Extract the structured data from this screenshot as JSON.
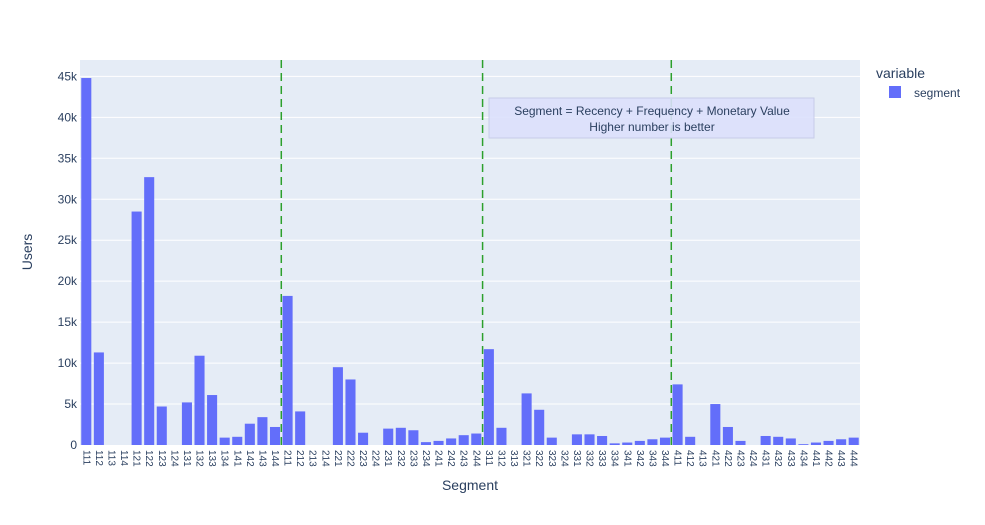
{
  "chart_data": {
    "type": "bar",
    "xlabel": "Segment",
    "ylabel": "Users",
    "ylim": [
      0,
      47000
    ],
    "yticks": [
      0,
      5000,
      10000,
      15000,
      20000,
      25000,
      30000,
      35000,
      40000,
      45000
    ],
    "ytick_labels": [
      "0",
      "5k",
      "10k",
      "15k",
      "20k",
      "25k",
      "30k",
      "35k",
      "40k",
      "45k"
    ],
    "grid": true,
    "legend": {
      "title": "variable",
      "placement": "top-right"
    },
    "series": [
      {
        "name": "segment",
        "color": "#636efa",
        "values": [
          44800,
          11300,
          0,
          0,
          28500,
          32700,
          4700,
          0,
          5200,
          10900,
          6100,
          900,
          1000,
          2600,
          3400,
          2200,
          18200,
          4100,
          0,
          0,
          9500,
          8000,
          1500,
          0,
          2000,
          2100,
          1800,
          350,
          500,
          800,
          1200,
          1400,
          11700,
          2100,
          0,
          6300,
          4300,
          900,
          0,
          1300,
          1300,
          1100,
          200,
          300,
          500,
          700,
          900,
          7400,
          1000,
          0,
          5000,
          2200,
          500,
          0,
          1100,
          1000,
          800,
          100,
          300,
          500,
          700,
          900
        ]
      }
    ],
    "categories": [
      "111",
      "112",
      "113",
      "114",
      "121",
      "122",
      "123",
      "124",
      "131",
      "132",
      "133",
      "134",
      "141",
      "142",
      "143",
      "144",
      "211",
      "212",
      "213",
      "214",
      "221",
      "222",
      "223",
      "224",
      "231",
      "232",
      "233",
      "234",
      "241",
      "242",
      "243",
      "244",
      "311",
      "312",
      "313",
      "321",
      "322",
      "323",
      "324",
      "331",
      "332",
      "333",
      "334",
      "341",
      "342",
      "343",
      "344",
      "411",
      "412",
      "413",
      "421",
      "422",
      "423",
      "424",
      "431",
      "432",
      "433",
      "434",
      "441",
      "442",
      "443",
      "444"
    ],
    "vlines_at_category": [
      "144.5",
      "244.5",
      "344.5"
    ],
    "vline_color": "#2ca02c",
    "annotation": {
      "lines": [
        "Segment = Recency + Frequency + Monetary Value",
        "Higher number is better"
      ]
    },
    "plot_bgcolor": "#e5ecf6"
  }
}
